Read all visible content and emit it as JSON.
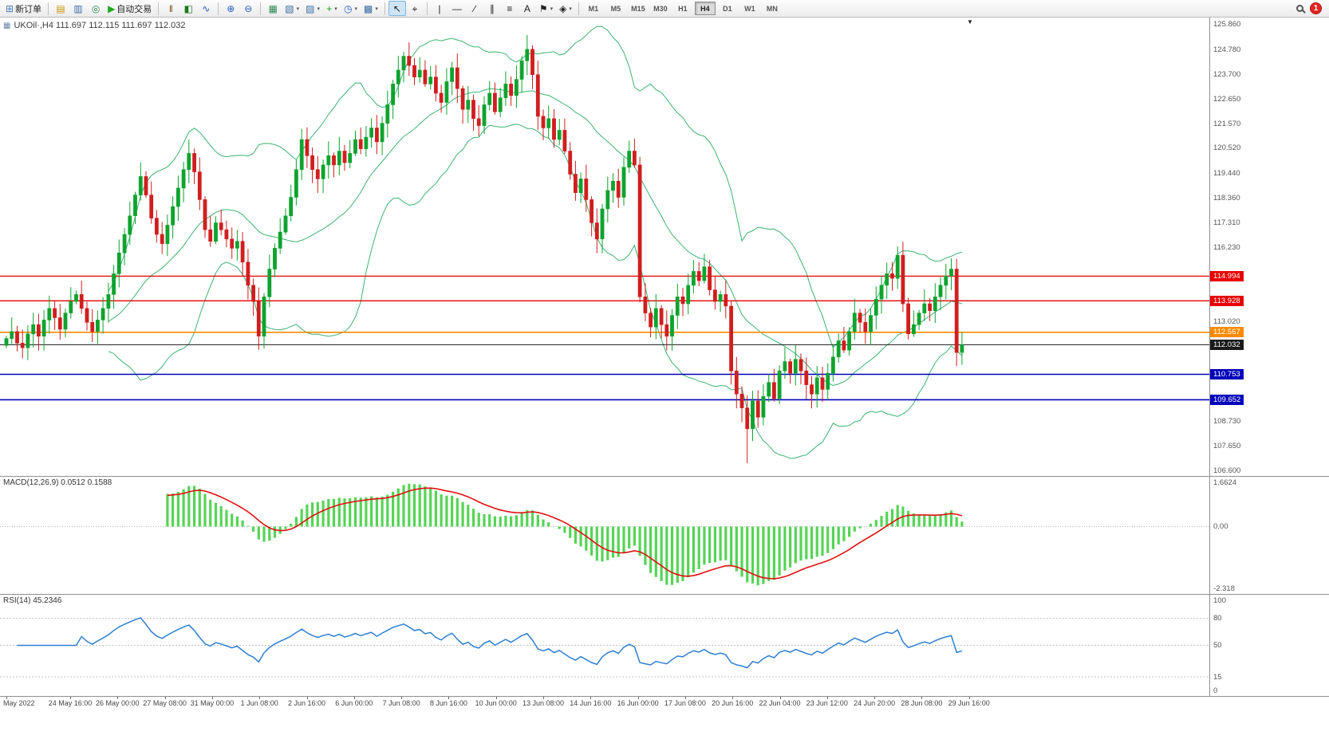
{
  "toolbar": {
    "new_order": {
      "label": "新订单",
      "icon_name": "new-order-icon",
      "glyph": "⊞",
      "color": "#4a7ebb"
    },
    "auto_trading": {
      "label": "自动交易",
      "icon_name": "auto-trading-icon",
      "glyph": "▶",
      "color": "#1faa1f"
    },
    "icons_left": [
      {
        "name": "charts-icon",
        "glyph": "▤",
        "color": "#c8960c"
      },
      {
        "name": "market-watch-icon",
        "glyph": "▥",
        "color": "#3b6ea5"
      },
      {
        "name": "navigator-icon",
        "glyph": "◎",
        "color": "#2e8b57"
      }
    ],
    "chart_type_icons": [
      {
        "name": "bar-chart-icon",
        "glyph": "‖",
        "color": "#7a4a12"
      },
      {
        "name": "candlestick-chart-icon",
        "glyph": "◧",
        "color": "#1c7c1c"
      },
      {
        "name": "line-chart-icon",
        "glyph": "∿",
        "color": "#2060c0"
      }
    ],
    "zoom_icons": [
      {
        "name": "zoom-in-icon",
        "glyph": "⊕",
        "color": "#2060c0"
      },
      {
        "name": "zoom-out-icon",
        "glyph": "⊖",
        "color": "#2060c0"
      }
    ],
    "window_icons": [
      {
        "name": "tile-windows-icon",
        "glyph": "▦",
        "color": "#2e8b57",
        "dropdown": false
      },
      {
        "name": "new-chart-icon",
        "glyph": "▧",
        "color": "#3b6ea5",
        "dropdown": true
      },
      {
        "name": "chart-profiles-icon",
        "glyph": "▨",
        "color": "#3b6ea5",
        "dropdown": true
      }
    ],
    "insert_icons": [
      {
        "name": "indicators-icon",
        "glyph": "+",
        "color": "#18a018",
        "dropdown": true
      },
      {
        "name": "periods-icon",
        "glyph": "◷",
        "color": "#2060c0",
        "dropdown": true
      },
      {
        "name": "templates-icon",
        "glyph": "▩",
        "color": "#3b6ea5",
        "dropdown": true
      }
    ],
    "cursor_icons": [
      {
        "name": "cursor-icon",
        "glyph": "↖",
        "color": "#222",
        "active": true
      },
      {
        "name": "crosshair-icon",
        "glyph": "⌖",
        "color": "#222",
        "active": false
      }
    ],
    "draw_icons": [
      {
        "name": "vertical-line-icon",
        "glyph": "|",
        "color": "#222"
      },
      {
        "name": "horizontal-line-icon",
        "glyph": "—",
        "color": "#222"
      },
      {
        "name": "trendline-icon",
        "glyph": "∕",
        "color": "#222"
      },
      {
        "name": "equidistant-channel-icon",
        "glyph": "∥",
        "color": "#222"
      },
      {
        "name": "fibonacci-icon",
        "glyph": "≡",
        "color": "#222"
      },
      {
        "name": "text-icon",
        "glyph": "A",
        "color": "#222"
      },
      {
        "name": "arrows-icon",
        "glyph": "⚑",
        "color": "#222",
        "dropdown": true
      },
      {
        "name": "shapes-icon",
        "glyph": "◈",
        "color": "#222",
        "dropdown": true
      }
    ],
    "timeframes": [
      "M1",
      "M5",
      "M15",
      "M30",
      "H1",
      "H4",
      "D1",
      "W1",
      "MN"
    ],
    "active_timeframe": "H4",
    "notification_count": "1"
  },
  "chart": {
    "symbol_line": "UKOil·,H4 111.697 112.115 111.697 112.032"
  },
  "chart_data": {
    "type": "candlestick",
    "symbol": "UKOil",
    "timeframe": "H4",
    "ohlc_current": {
      "open": 111.697,
      "high": 112.115,
      "low": 111.697,
      "close": 112.032
    },
    "colors": {
      "bull": "#0ea32e",
      "bear": "#d01e1e",
      "bands": "#3cb371",
      "macd_hist": "#55d455",
      "macd_signal": "#e01010",
      "rsi": "#2d7fd3"
    },
    "candles": {
      "first_open": 112.0,
      "closes": [
        112.3,
        112.6,
        112.1,
        111.9,
        112.5,
        112.9,
        112.4,
        113.1,
        113.6,
        113.2,
        112.7,
        113.4,
        113.9,
        114.2,
        113.6,
        113.0,
        112.6,
        113.1,
        113.6,
        114.2,
        115.1,
        116.0,
        116.8,
        117.6,
        118.5,
        119.3,
        118.5,
        117.5,
        116.8,
        116.4,
        117.2,
        118.0,
        118.8,
        119.6,
        120.3,
        119.5,
        118.3,
        117.0,
        116.5,
        117.3,
        117.0,
        116.6,
        116.2,
        116.5,
        115.6,
        114.6,
        113.9,
        112.4,
        114.1,
        115.3,
        116.2,
        116.9,
        117.6,
        118.4,
        119.6,
        120.9,
        120.2,
        119.6,
        119.2,
        119.8,
        120.2,
        119.8,
        120.4,
        119.9,
        120.3,
        120.9,
        120.5,
        121.0,
        121.4,
        120.8,
        121.6,
        122.4,
        123.3,
        123.9,
        124.5,
        124.1,
        123.6,
        123.9,
        123.3,
        123.6,
        122.9,
        122.5,
        123.4,
        124.0,
        123.1,
        122.2,
        122.6,
        121.8,
        121.5,
        122.4,
        122.9,
        122.1,
        122.7,
        123.3,
        122.8,
        123.5,
        124.3,
        124.8,
        123.7,
        121.9,
        121.4,
        121.8,
        120.9,
        121.3,
        120.4,
        119.4,
        118.6,
        119.2,
        118.3,
        117.3,
        116.6,
        117.9,
        118.7,
        119.1,
        118.4,
        119.7,
        120.4,
        119.8,
        114.1,
        113.4,
        112.8,
        113.6,
        112.9,
        112.4,
        113.3,
        114.1,
        113.8,
        114.6,
        115.2,
        114.8,
        115.4,
        114.4,
        113.9,
        114.2,
        113.7,
        110.9,
        109.9,
        109.3,
        108.4,
        109.6,
        108.9,
        109.8,
        110.4,
        109.7,
        110.9,
        111.3,
        110.8,
        111.4,
        110.9,
        110.3,
        109.9,
        110.6,
        110.1,
        110.8,
        111.5,
        112.2,
        111.8,
        112.6,
        113.4,
        113.0,
        112.6,
        113.3,
        114.0,
        114.6,
        115.1,
        114.9,
        115.9,
        113.8,
        112.5,
        112.9,
        113.4,
        113.8,
        113.5,
        114.1,
        114.6,
        115.0,
        115.3,
        111.697,
        112.032
      ],
      "wick_low_overrides": {
        "138": 0.9
      }
    },
    "bollinger": {
      "period": 20,
      "deviation": 2
    },
    "levels": [
      {
        "name": "resistance-1",
        "price": 114.994,
        "label": "114.994",
        "color": "#e80000",
        "width": 1.3
      },
      {
        "name": "resistance-2",
        "price": 113.928,
        "label": "113.928",
        "color": "#e80000",
        "width": 1.3
      },
      {
        "name": "pivot-line",
        "price": 112.567,
        "label": "112.567",
        "color": "#ff8a00",
        "width": 1.6
      },
      {
        "name": "bid-line",
        "price": 112.032,
        "label": "112.032",
        "color": "#1a1a1a",
        "width": 1
      },
      {
        "name": "support-1",
        "price": 110.753,
        "label": "110.753",
        "color": "#0000bb",
        "width": 1.6
      },
      {
        "name": "support-2",
        "price": 109.652,
        "label": "109.652",
        "color": "#0000bb",
        "width": 1.6
      }
    ],
    "price_axis": {
      "min": 106.36,
      "max": 126.17,
      "labels": [
        {
          "text": "125.860",
          "value": 125.86
        },
        {
          "text": "124.780",
          "value": 124.78
        },
        {
          "text": "123.700",
          "value": 123.7
        },
        {
          "text": "122.650",
          "value": 122.65
        },
        {
          "text": "121.570",
          "value": 121.57
        },
        {
          "text": "120.520",
          "value": 120.52
        },
        {
          "text": "119.440",
          "value": 119.44
        },
        {
          "text": "118.360",
          "value": 118.36
        },
        {
          "text": "117.310",
          "value": 117.31
        },
        {
          "text": "116.230",
          "value": 116.23
        },
        {
          "text": "113.020",
          "value": 113.02
        },
        {
          "text": "108.730",
          "value": 108.73
        },
        {
          "text": "107.650",
          "value": 107.65
        },
        {
          "text": "106.600",
          "value": 106.6
        }
      ]
    },
    "macd": {
      "fast": 12,
      "slow": 26,
      "signal": 9,
      "label": "MACD(12,26,9)",
      "values": "0.0512 0.1588",
      "axis": {
        "max": 1.6624,
        "min": -2.318,
        "labels": [
          {
            "text": "1.6624",
            "value": 1.6624
          },
          {
            "text": "0.00",
            "value": 0
          },
          {
            "text": "-2.318",
            "value": -2.318
          }
        ]
      }
    },
    "rsi": {
      "period": 14,
      "label": "RSI(14)",
      "value": "45.2346",
      "levels": [
        80,
        50,
        15
      ],
      "axis_labels": [
        {
          "text": "100",
          "value": 100
        },
        {
          "text": "80",
          "value": 80
        },
        {
          "text": "50",
          "value": 50
        },
        {
          "text": "15",
          "value": 15
        },
        {
          "text": "0",
          "value": 0
        }
      ]
    },
    "time_labels": [
      "May 2022",
      "24 May 16:00",
      "26 May 00:00",
      "27 May 08:00",
      "31 May 00:00",
      "1 Jun 08:00",
      "2 Jun 16:00",
      "6 Jun 00:00",
      "7 Jun 08:00",
      "8 Jun 16:00",
      "10 Jun 00:00",
      "13 Jun 08:00",
      "14 Jun 16:00",
      "16 Jun 00:00",
      "17 Jun 08:00",
      "20 Jun 16:00",
      "22 Jun 04:00",
      "23 Jun 12:00",
      "24 Jun 20:00",
      "28 Jun 08:00",
      "29 Jun 16:00"
    ]
  }
}
